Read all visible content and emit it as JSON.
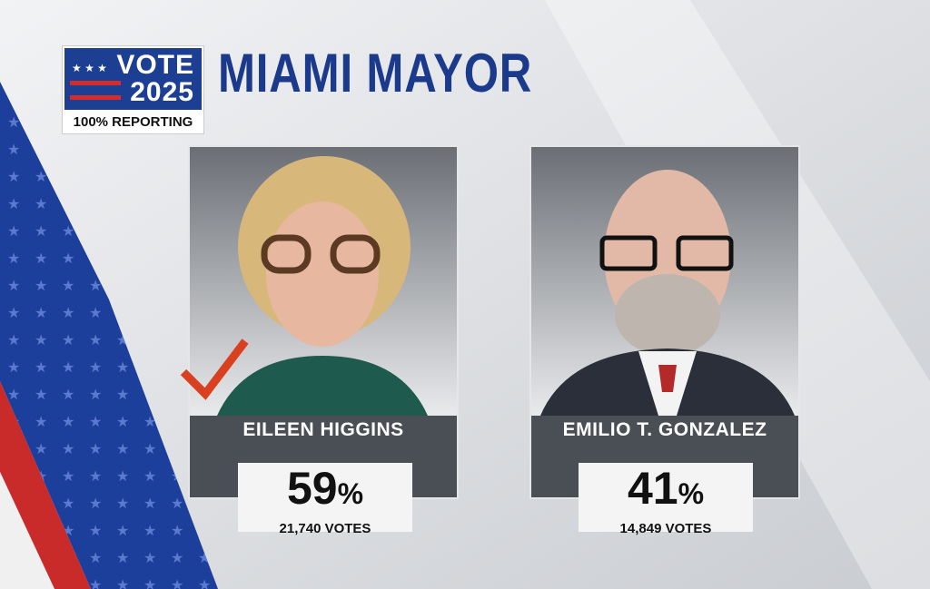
{
  "header": {
    "badge_line1": "VOTE",
    "badge_line2": "2025",
    "reporting": "100% REPORTING",
    "title": "MIAMI MAYOR"
  },
  "candidates": [
    {
      "name": "EILEEN HIGGINS",
      "percent": "59",
      "percent_unit": "%",
      "votes": "21,740 VOTES"
    },
    {
      "name": "EMILIO T. GONZALEZ",
      "percent": "41",
      "percent_unit": "%",
      "votes": "14,849 VOTES"
    }
  ]
}
